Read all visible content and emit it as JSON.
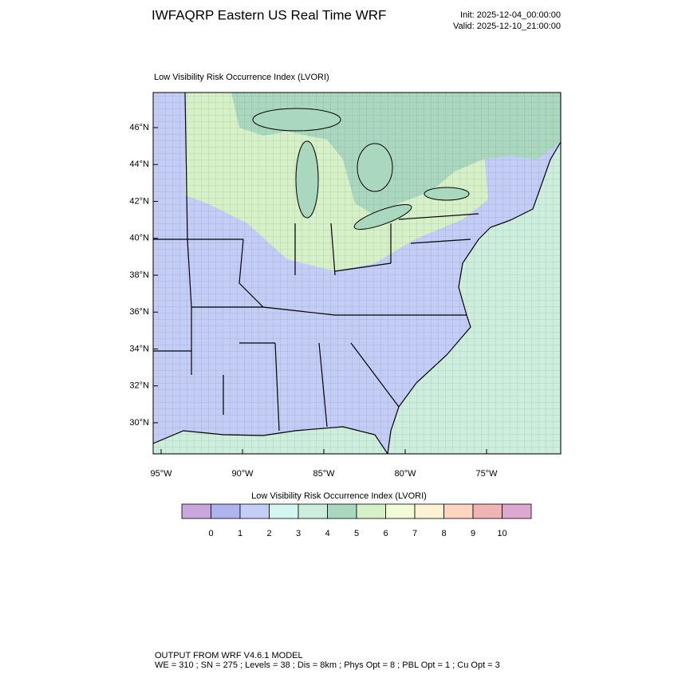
{
  "header": {
    "title": "IWFAQRP Eastern US Real Time WRF",
    "init": "Init: 2025-12-04_00:00:00",
    "valid": "Valid: 2025-12-10_21:00:00"
  },
  "map": {
    "title": "Low Visibility Risk Occurrence Index   (LVORI)",
    "lat_labels": [
      "46°N",
      "44°N",
      "42°N",
      "40°N",
      "38°N",
      "36°N",
      "34°N",
      "32°N",
      "30°N"
    ],
    "lon_labels": [
      "95°W",
      "90°W",
      "85°W",
      "80°W",
      "75°W"
    ]
  },
  "colorbar": {
    "title": "Low Visibility Risk Occurrence Index  (LVORI)",
    "labels": [
      "0",
      "1",
      "2",
      "3",
      "4",
      "5",
      "6",
      "7",
      "8",
      "9",
      "10"
    ],
    "colors": [
      "#c9a6dc",
      "#b0b4ee",
      "#c3cdf6",
      "#d4f6f0",
      "#cdeedd",
      "#aad8bf",
      "#d6f0c8",
      "#f2fad8",
      "#fdf2d4",
      "#fdd4c0",
      "#f0b4b4",
      "#dca8d0"
    ]
  },
  "footer": {
    "line1": "OUTPUT FROM WRF V4.6.1 MODEL",
    "line2": "WE = 310 ; SN = 275 ; Levels = 38 ; Dis = 8km ; Phys Opt = 8 ; PBL Opt = 1 ; Cu Opt = 3"
  }
}
